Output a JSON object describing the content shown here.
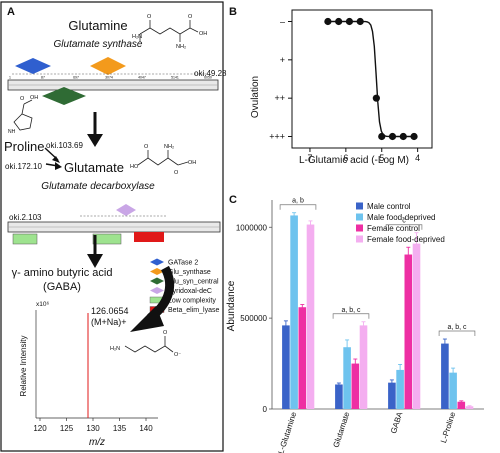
{
  "panels": {
    "A": {
      "letter": "A",
      "glutamine_label": "Glutamine",
      "glutamate_synthase_label": "Glutamate synthase",
      "track1_id": "oki.49.28",
      "track1_ticks": [
        "1",
        "87",
        "697",
        "3074",
        "4047",
        "5141",
        "6050"
      ],
      "proline_label": "Proline",
      "proline_id": "oki.103.69",
      "glutamate_id_left": "oki.172.10",
      "glutamate_label": "Glutamate",
      "glutamate_decarboxylase_label": "Glutamate decarboxylase",
      "track2_id": "oki.2.103",
      "gaba_name_line1": "γ- amino butyric acid",
      "gaba_name_line2": "(GABA)",
      "legend": [
        {
          "label": "GATase 2",
          "color": "#2f5fcf",
          "shape": "diamond"
        },
        {
          "label": "Glu_synthase",
          "color": "#f39a1c",
          "shape": "diamond"
        },
        {
          "label": "Glu_syn_central",
          "color": "#2f6b34",
          "shape": "diamond"
        },
        {
          "label": "Pyridoxal-deC",
          "color": "#c9a6e6",
          "shape": "diamond"
        },
        {
          "label": "Low complexity",
          "color": "#9ee38f",
          "shape": "rect"
        },
        {
          "label": "Beta_elim_lyase",
          "color": "#e01919",
          "shape": "rect"
        }
      ],
      "ms": {
        "exponent_label": "x10⁶",
        "peak_mz": "126.0654",
        "adduct": "(M+Na)+",
        "ylabel": "Relative Intensity",
        "xlabel": "m/z",
        "xticks": [
          "120",
          "125",
          "130",
          "135",
          "140"
        ]
      }
    },
    "B": {
      "letter": "B",
      "ylabel": "Ovulation",
      "xlabel": "L-Glutamic acid (-Log M)",
      "yticks": [
        "+++",
        "++",
        "+",
        "–"
      ],
      "xticks": [
        "7",
        "6",
        "5",
        "4"
      ]
    },
    "C": {
      "letter": "C",
      "ylabel": "Abundance",
      "yticks": [
        "0",
        "500000",
        "1000000"
      ],
      "group_annotations": [
        "a, b",
        "a, b, c",
        "c",
        "a, b, c"
      ]
    }
  },
  "chart_data": [
    {
      "type": "line",
      "panel": "B",
      "xlabel": "L-Glutamic acid (-Log M)",
      "ylabel": "Ovulation",
      "x_reversed": true,
      "xlim": [
        7.5,
        3.6
      ],
      "ylim": [
        -0.3,
        3.3
      ],
      "ytick_values": [
        0,
        1,
        2,
        3
      ],
      "ytick_labels": [
        "–",
        "+",
        "++",
        "+++"
      ],
      "series": [
        {
          "x": [
            6.5,
            6.2,
            5.9,
            5.6,
            5.15,
            5.0,
            4.7,
            4.4,
            4.1
          ],
          "y": [
            3,
            3,
            3,
            3,
            1,
            0,
            0,
            0,
            0
          ]
        }
      ]
    },
    {
      "type": "bar",
      "panel": "C",
      "ylabel": "Abundance",
      "ylim": [
        0,
        1150000
      ],
      "categories": [
        "L-Glutamine",
        "Glutamate",
        "GABA",
        "L-Proline"
      ],
      "series": [
        {
          "name": "Male control",
          "color": "#3a63c8",
          "values": [
            460000,
            135000,
            145000,
            360000
          ],
          "errors": [
            25000,
            8000,
            15000,
            25000
          ]
        },
        {
          "name": "Male food-deprived",
          "color": "#6ec3ee",
          "values": [
            1065000,
            340000,
            215000,
            200000
          ],
          "errors": [
            15000,
            40000,
            30000,
            25000
          ]
        },
        {
          "name": "Female control",
          "color": "#ee2fa3",
          "values": [
            560000,
            250000,
            850000,
            40000
          ],
          "errors": [
            15000,
            25000,
            40000,
            5000
          ]
        },
        {
          "name": "Female food-deprived",
          "color": "#f4aef0",
          "values": [
            1015000,
            460000,
            910000,
            15000
          ],
          "errors": [
            20000,
            20000,
            60000,
            3000
          ]
        }
      ],
      "group_annotations": [
        "a, b",
        "a, b, c",
        "c",
        "a, b, c"
      ]
    }
  ]
}
